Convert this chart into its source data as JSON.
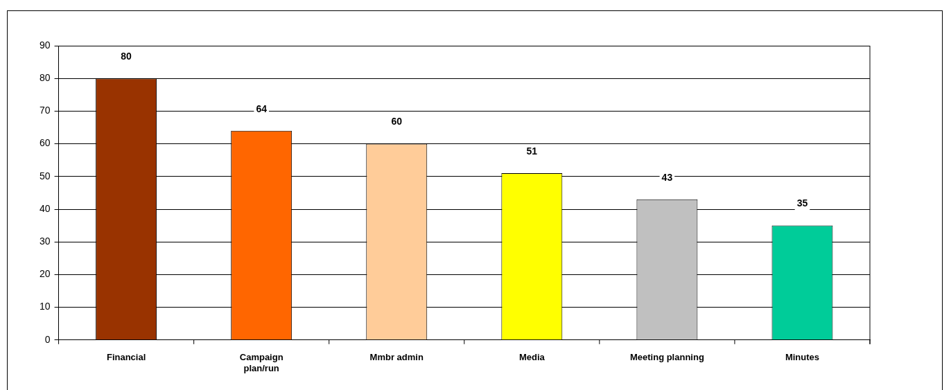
{
  "chart_data": {
    "type": "bar",
    "categories": [
      "Financial",
      "Campaign plan/run",
      "Mmbr admin",
      "Media",
      "Meeting planning",
      "Minutes"
    ],
    "values": [
      80,
      64,
      60,
      51,
      43,
      35
    ],
    "colors": [
      "#993300",
      "#ff6600",
      "#ffcc99",
      "#ffff00",
      "#c0c0c0",
      "#00cc99"
    ],
    "ylim": [
      0,
      90
    ],
    "yticks": [
      0,
      10,
      20,
      30,
      40,
      50,
      60,
      70,
      80,
      90
    ],
    "grid": "y",
    "data_labels": true
  }
}
